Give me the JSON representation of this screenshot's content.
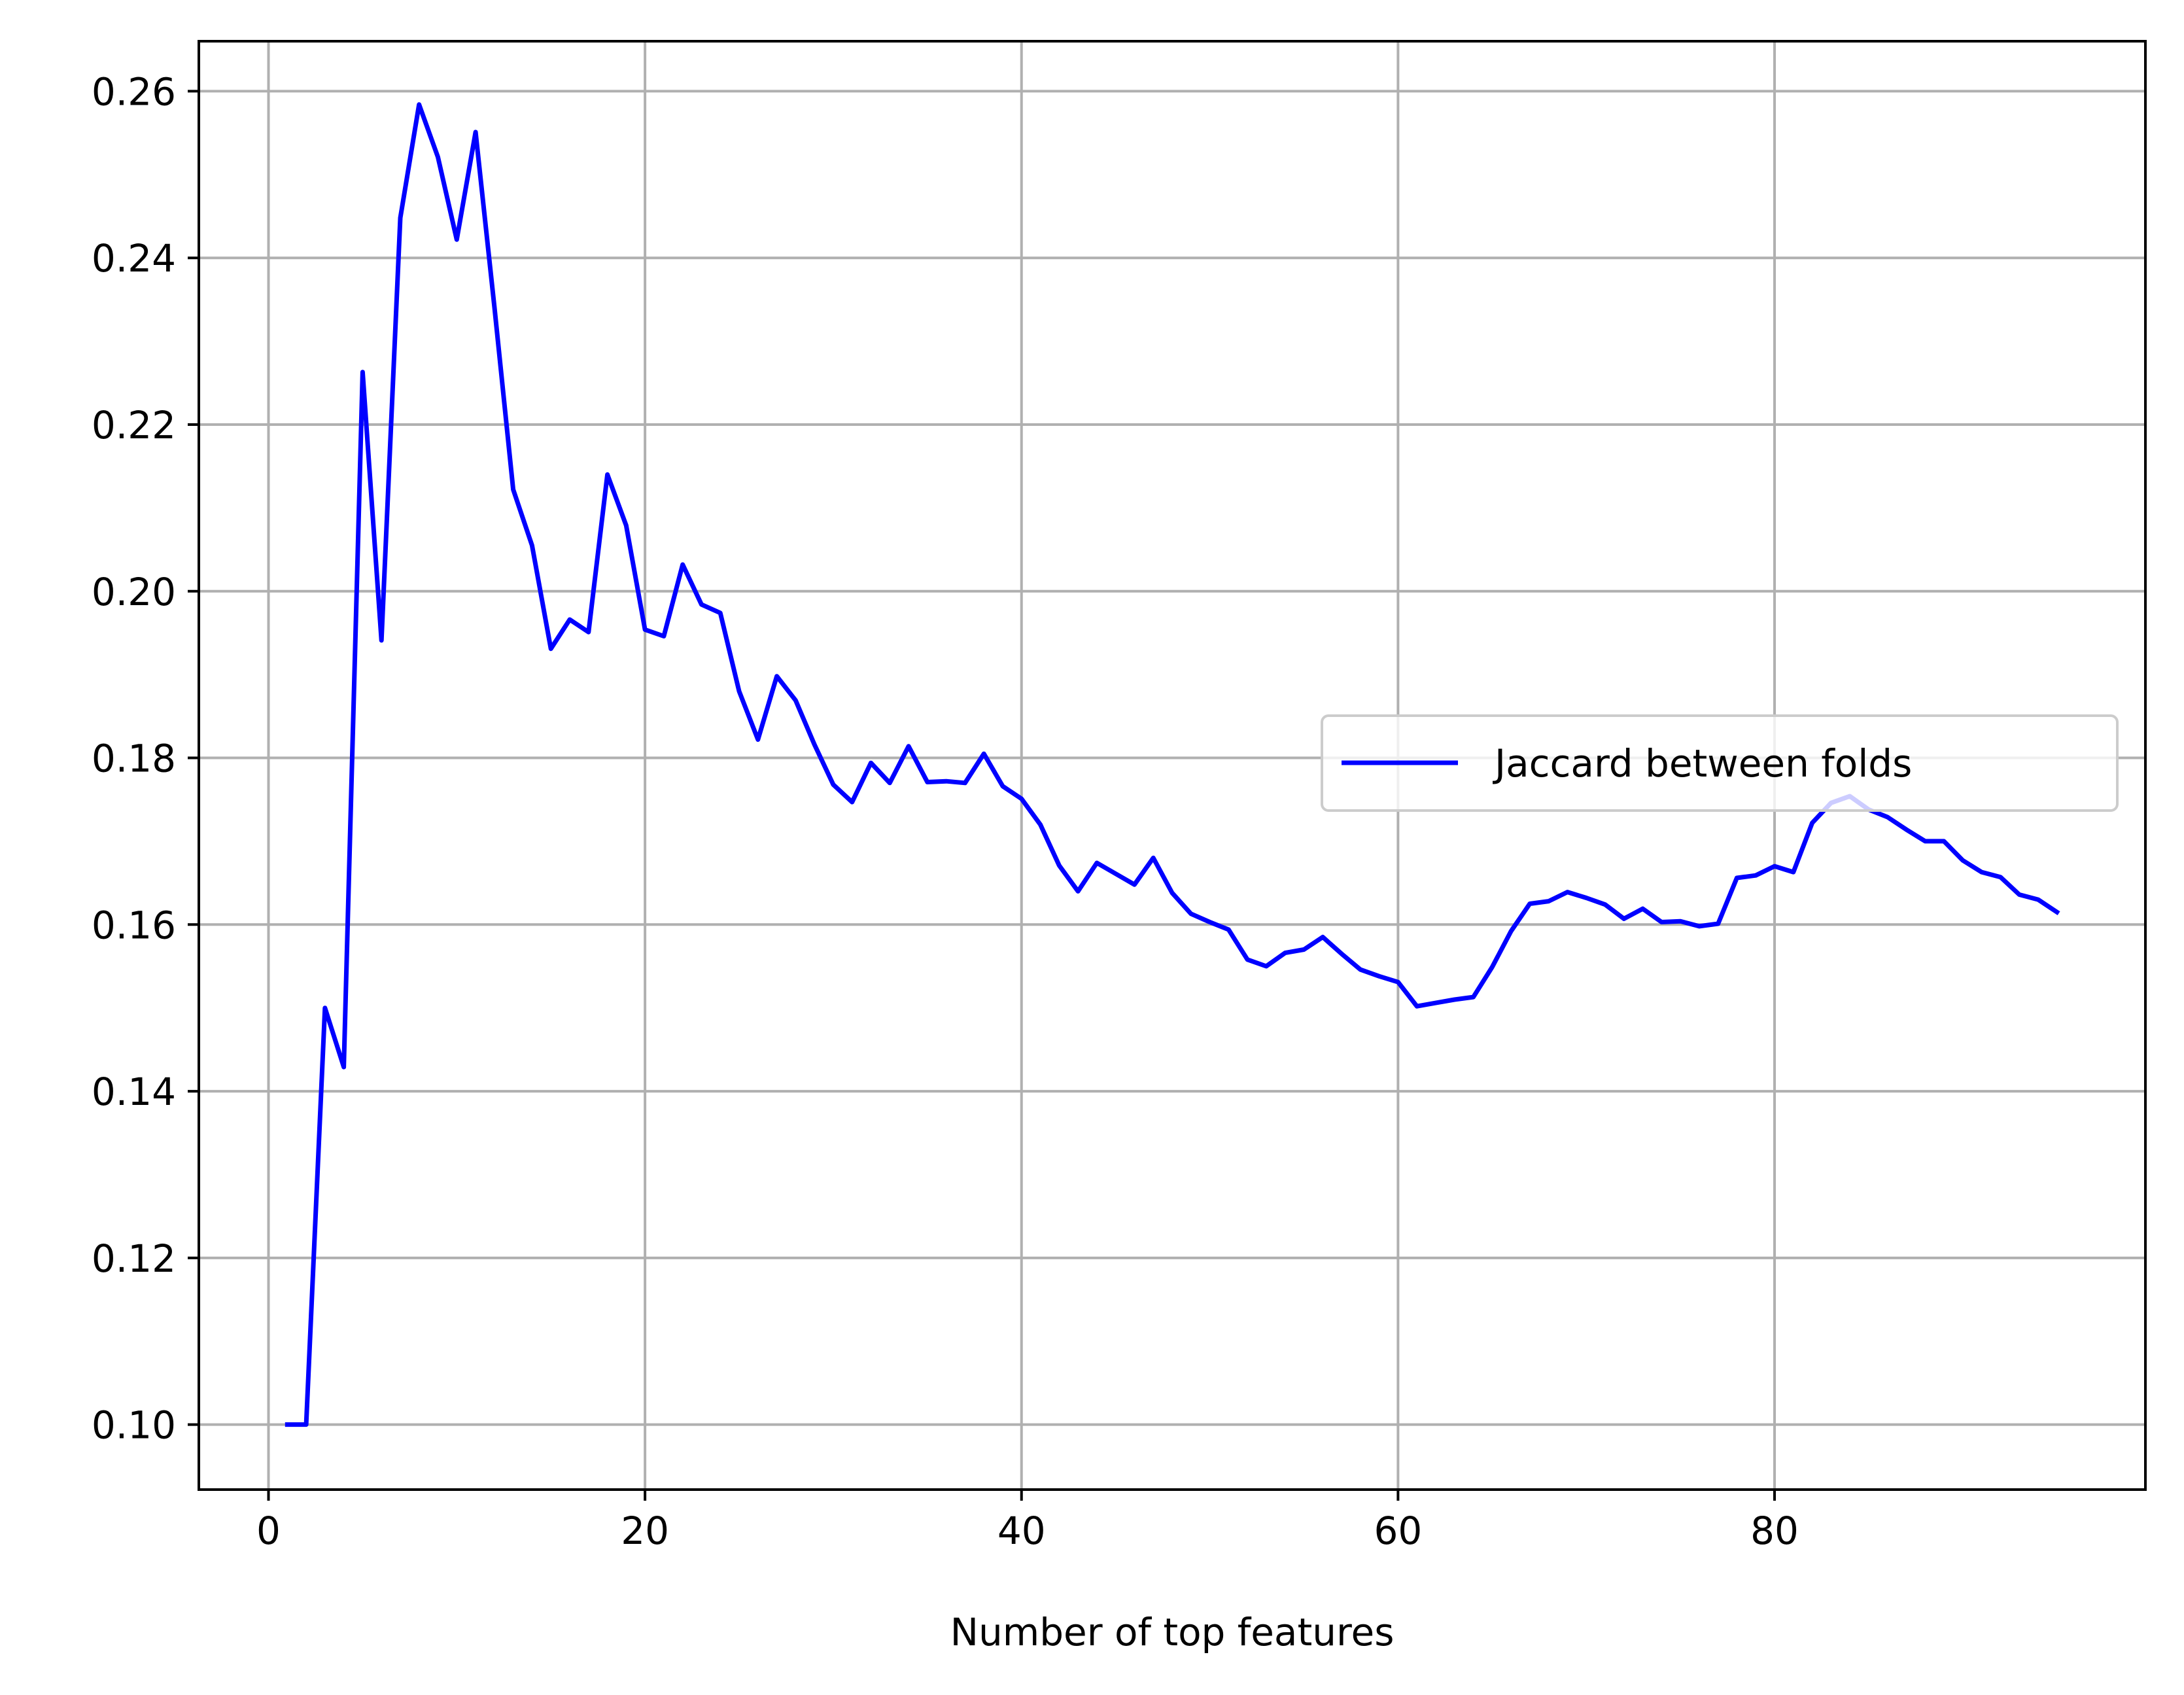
{
  "chart_data": {
    "type": "line",
    "title": "",
    "xlabel": "Number of top features",
    "ylabel": "",
    "xlim": [
      -3.7,
      99.7
    ],
    "ylim": [
      0.0922,
      0.266
    ],
    "grid": true,
    "legend_position": "center-right",
    "xticks": [
      0,
      20,
      40,
      60,
      80
    ],
    "xtick_labels": [
      "0",
      "20",
      "40",
      "60",
      "80"
    ],
    "yticks": [
      0.1,
      0.12,
      0.14,
      0.16,
      0.18,
      0.2,
      0.22,
      0.24,
      0.26
    ],
    "ytick_labels": [
      "0.10",
      "0.12",
      "0.14",
      "0.16",
      "0.18",
      "0.20",
      "0.22",
      "0.24",
      "0.26"
    ],
    "series": [
      {
        "name": "Jaccard between folds",
        "color": "#0000ff",
        "x": [
          1,
          2,
          3,
          4,
          5,
          6,
          7,
          8,
          9,
          10,
          11,
          12,
          13,
          14,
          15,
          16,
          17,
          18,
          19,
          20,
          21,
          22,
          23,
          24,
          25,
          26,
          27,
          28,
          29,
          30,
          31,
          32,
          33,
          34,
          35,
          36,
          37,
          38,
          39,
          40,
          41,
          42,
          43,
          44,
          45,
          46,
          47,
          48,
          49,
          50,
          51,
          52,
          53,
          54,
          55,
          56,
          57,
          58,
          59,
          60,
          61,
          62,
          63,
          64,
          65,
          66,
          67,
          68,
          69,
          70,
          71,
          72,
          73,
          74,
          75,
          76,
          77,
          78,
          79,
          80,
          81,
          82,
          83,
          84,
          85,
          86,
          87,
          88,
          89,
          90,
          91,
          92,
          93,
          94,
          95
        ],
        "y": [
          0.1,
          0.1,
          0.15,
          0.1429,
          0.2263,
          0.1941,
          0.2448,
          0.2584,
          0.2521,
          0.2422,
          0.2551,
          0.2341,
          0.2122,
          0.2055,
          0.1931,
          0.1966,
          0.1951,
          0.214,
          0.2079,
          0.1954,
          0.1946,
          0.2032,
          0.1984,
          0.1974,
          0.188,
          0.1822,
          0.1898,
          0.1869,
          0.1816,
          0.1768,
          0.1747,
          0.1794,
          0.177,
          0.1814,
          0.1771,
          0.1772,
          0.177,
          0.1805,
          0.1766,
          0.1751,
          0.172,
          0.1671,
          0.164,
          0.1674,
          0.1661,
          0.1648,
          0.168,
          0.1638,
          0.1613,
          0.1603,
          0.1594,
          0.1558,
          0.155,
          0.1566,
          0.157,
          0.1585,
          0.1565,
          0.1546,
          0.1538,
          0.1531,
          0.1502,
          0.1506,
          0.151,
          0.1513,
          0.1549,
          0.1592,
          0.1625,
          0.1628,
          0.1639,
          0.1632,
          0.1624,
          0.1607,
          0.1619,
          0.1603,
          0.1604,
          0.1598,
          0.1601,
          0.1656,
          0.1659,
          0.167,
          0.1663,
          0.1722,
          0.1746,
          0.1754,
          0.1738,
          0.1729,
          0.1714,
          0.17,
          0.17,
          0.1677,
          0.1663,
          0.1657,
          0.1636,
          0.163,
          0.1615
        ]
      }
    ]
  }
}
